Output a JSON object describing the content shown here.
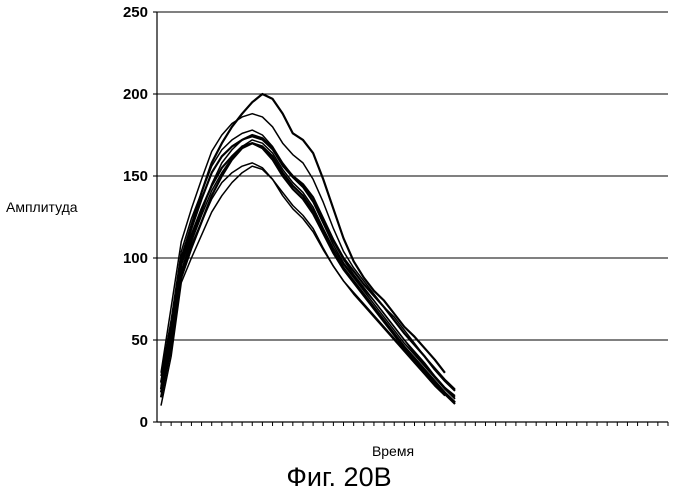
{
  "chart_data": {
    "type": "line",
    "ylabel": "Амплитуда",
    "xlabel": "Время",
    "ylim": [
      0,
      250
    ],
    "yticks": [
      0,
      50,
      100,
      150,
      200,
      250
    ],
    "xlim": [
      0,
      50
    ],
    "x_tick_count": 50,
    "grid": "horizontal",
    "x": [
      0,
      1,
      2,
      3,
      4,
      5,
      6,
      7,
      8,
      9,
      10,
      11,
      12,
      13,
      14,
      15,
      16,
      17,
      18,
      19,
      20,
      21,
      22,
      23,
      24,
      25,
      26,
      27,
      28,
      29,
      30
    ],
    "series": [
      {
        "values": [
          20,
          60,
          100,
          120,
          140,
          158,
          170,
          180,
          188,
          195,
          200,
          197,
          188,
          176,
          172,
          164,
          148,
          130,
          112,
          98,
          88,
          80,
          74,
          66,
          58,
          52,
          45,
          38,
          30,
          0,
          0
        ],
        "points": 29
      },
      {
        "values": [
          30,
          70,
          110,
          130,
          148,
          165,
          175,
          182,
          186,
          188,
          186,
          180,
          170,
          163,
          158,
          148,
          134,
          118,
          104,
          94,
          86,
          78,
          70,
          64,
          56,
          48,
          40,
          33,
          26,
          20,
          0
        ],
        "points": 30
      },
      {
        "values": [
          25,
          55,
          92,
          112,
          128,
          145,
          158,
          166,
          172,
          174,
          172,
          166,
          156,
          149,
          143,
          134,
          121,
          108,
          97,
          89,
          81,
          74,
          66,
          58,
          50,
          43,
          36,
          28,
          21,
          15,
          0
        ],
        "points": 30
      },
      {
        "values": [
          15,
          45,
          88,
          106,
          122,
          138,
          150,
          160,
          167,
          170,
          168,
          162,
          152,
          144,
          138,
          129,
          116,
          104,
          94,
          86,
          78,
          70,
          62,
          54,
          46,
          39,
          32,
          25,
          18,
          12,
          0
        ],
        "points": 30
      },
      {
        "values": [
          22,
          50,
          90,
          110,
          126,
          141,
          152,
          161,
          168,
          172,
          170,
          164,
          154,
          146,
          140,
          131,
          118,
          106,
          96,
          88,
          80,
          72,
          64,
          56,
          48,
          41,
          34,
          27,
          20,
          14,
          0
        ],
        "points": 30
      },
      {
        "values": [
          10,
          40,
          85,
          100,
          114,
          128,
          138,
          146,
          152,
          156,
          154,
          148,
          140,
          132,
          126,
          118,
          106,
          95,
          86,
          79,
          72,
          65,
          58,
          51,
          44,
          37,
          30,
          23,
          16,
          0,
          0
        ],
        "points": 29
      },
      {
        "values": [
          18,
          52,
          96,
          114,
          130,
          144,
          155,
          162,
          168,
          170,
          167,
          160,
          150,
          142,
          136,
          127,
          115,
          103,
          93,
          85,
          77,
          69,
          61,
          53,
          45,
          38,
          31,
          24,
          17,
          11,
          0
        ],
        "points": 30
      },
      {
        "values": [
          28,
          62,
          104,
          124,
          140,
          156,
          166,
          172,
          176,
          178,
          175,
          168,
          158,
          150,
          144,
          135,
          122,
          110,
          99,
          90,
          82,
          74,
          66,
          58,
          50,
          42,
          35,
          28,
          21,
          16,
          0
        ],
        "points": 30
      },
      {
        "values": [
          20,
          48,
          92,
          108,
          122,
          136,
          146,
          152,
          156,
          158,
          155,
          148,
          138,
          130,
          124,
          116,
          105,
          95,
          86,
          78,
          71,
          64,
          57,
          50,
          43,
          36,
          29,
          22,
          16,
          0,
          0
        ],
        "points": 29
      },
      {
        "values": [
          24,
          58,
          98,
          118,
          136,
          152,
          162,
          168,
          172,
          175,
          173,
          167,
          157,
          150,
          145,
          137,
          124,
          111,
          100,
          92,
          84,
          77,
          70,
          62,
          54,
          47,
          40,
          32,
          25,
          19,
          0
        ],
        "points": 30
      }
    ]
  },
  "caption": "Фиг. 20B"
}
